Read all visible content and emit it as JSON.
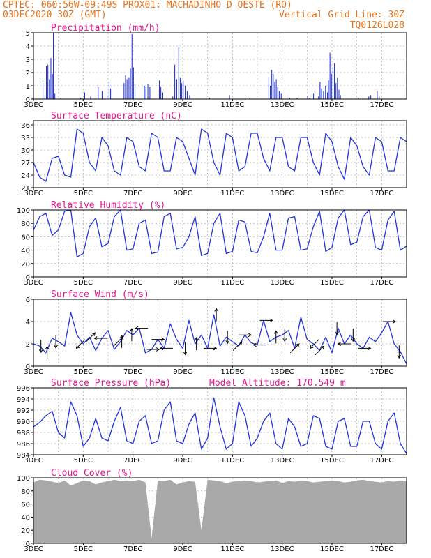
{
  "header": {
    "line1": "CPTEC:   060:56W-09:49S   PROX01: MACHADINHO D OESTE (RO)",
    "line2_left": "03DEC2020 30Z (GMT)",
    "line2_right": "Vertical Grid Line: 30Z",
    "line3_right": "TQ0126L028"
  },
  "colors": {
    "header": "#e8731a",
    "panel_title": "#e0168c",
    "series": "#2233dd",
    "wind_arrow": "#000000",
    "cloud_fill": "#a9a9a9",
    "grid": "#b0b0b0"
  },
  "chart_data": [
    {
      "type": "bar",
      "title": "Precipitation (mm/h)",
      "xticks": [
        "3DEC",
        "5DEC",
        "7DEC",
        "9DEC",
        "11DEC",
        "13DEC",
        "15DEC",
        "17DEC"
      ],
      "ylim": [
        0,
        5
      ],
      "yticks": [
        0,
        1,
        2,
        3,
        4,
        5
      ],
      "x_range_days": [
        0,
        15
      ],
      "bars": [
        {
          "x": 0.38,
          "v": 1.2
        },
        {
          "x": 0.46,
          "v": 0.3
        },
        {
          "x": 0.52,
          "v": 2.5
        },
        {
          "x": 0.58,
          "v": 2.6
        },
        {
          "x": 0.64,
          "v": 1.5
        },
        {
          "x": 0.7,
          "v": 3.1
        },
        {
          "x": 0.76,
          "v": 1.9
        },
        {
          "x": 0.8,
          "v": 5.0
        },
        {
          "x": 0.86,
          "v": 0.4
        },
        {
          "x": 1.1,
          "v": 0.1
        },
        {
          "x": 1.9,
          "v": 0.1
        },
        {
          "x": 2.06,
          "v": 0.5
        },
        {
          "x": 2.3,
          "v": 0.2
        },
        {
          "x": 2.6,
          "v": 0.9
        },
        {
          "x": 2.76,
          "v": 0.6
        },
        {
          "x": 2.96,
          "v": 0.3
        },
        {
          "x": 3.04,
          "v": 1.3
        },
        {
          "x": 3.1,
          "v": 0.8
        },
        {
          "x": 3.64,
          "v": 1.2
        },
        {
          "x": 3.7,
          "v": 1.8
        },
        {
          "x": 3.76,
          "v": 1.5
        },
        {
          "x": 3.84,
          "v": 1.6
        },
        {
          "x": 3.9,
          "v": 2.3
        },
        {
          "x": 3.96,
          "v": 4.9
        },
        {
          "x": 4.02,
          "v": 2.4
        },
        {
          "x": 4.08,
          "v": 1.1
        },
        {
          "x": 4.46,
          "v": 1.0
        },
        {
          "x": 4.52,
          "v": 0.9
        },
        {
          "x": 4.6,
          "v": 1.1
        },
        {
          "x": 4.68,
          "v": 0.9
        },
        {
          "x": 5.06,
          "v": 1.4
        },
        {
          "x": 5.12,
          "v": 0.9
        },
        {
          "x": 5.2,
          "v": 0.5
        },
        {
          "x": 5.6,
          "v": 0.2
        },
        {
          "x": 5.68,
          "v": 2.6
        },
        {
          "x": 5.76,
          "v": 1.5
        },
        {
          "x": 5.84,
          "v": 3.9
        },
        {
          "x": 5.9,
          "v": 1.6
        },
        {
          "x": 5.96,
          "v": 1.2
        },
        {
          "x": 6.02,
          "v": 1.4
        },
        {
          "x": 6.1,
          "v": 1.0
        },
        {
          "x": 6.18,
          "v": 0.6
        },
        {
          "x": 6.28,
          "v": 0.3
        },
        {
          "x": 7.08,
          "v": 0.1
        },
        {
          "x": 7.88,
          "v": 0.3
        },
        {
          "x": 8.7,
          "v": 0.1
        },
        {
          "x": 9.46,
          "v": 1.7
        },
        {
          "x": 9.52,
          "v": 1.0
        },
        {
          "x": 9.58,
          "v": 2.2
        },
        {
          "x": 9.64,
          "v": 1.9
        },
        {
          "x": 9.7,
          "v": 1.3
        },
        {
          "x": 9.76,
          "v": 1.5
        },
        {
          "x": 9.82,
          "v": 0.9
        },
        {
          "x": 9.88,
          "v": 0.6
        },
        {
          "x": 9.96,
          "v": 0.4
        },
        {
          "x": 10.3,
          "v": 0.1
        },
        {
          "x": 10.6,
          "v": 0.1
        },
        {
          "x": 11.02,
          "v": 0.2
        },
        {
          "x": 11.1,
          "v": 0.1
        },
        {
          "x": 11.26,
          "v": 0.4
        },
        {
          "x": 11.46,
          "v": 0.2
        },
        {
          "x": 11.52,
          "v": 1.3
        },
        {
          "x": 11.58,
          "v": 0.8
        },
        {
          "x": 11.66,
          "v": 0.6
        },
        {
          "x": 11.74,
          "v": 1.0
        },
        {
          "x": 11.82,
          "v": 0.5
        },
        {
          "x": 11.86,
          "v": 1.4
        },
        {
          "x": 11.92,
          "v": 3.5
        },
        {
          "x": 11.98,
          "v": 1.9
        },
        {
          "x": 12.04,
          "v": 2.4
        },
        {
          "x": 12.1,
          "v": 2.7
        },
        {
          "x": 12.16,
          "v": 1.2
        },
        {
          "x": 12.22,
          "v": 1.6
        },
        {
          "x": 12.28,
          "v": 0.7
        },
        {
          "x": 12.34,
          "v": 0.3
        },
        {
          "x": 13.06,
          "v": 0.1
        },
        {
          "x": 13.48,
          "v": 0.2
        },
        {
          "x": 13.56,
          "v": 0.3
        },
        {
          "x": 13.82,
          "v": 0.6
        },
        {
          "x": 13.9,
          "v": 0.2
        }
      ]
    },
    {
      "type": "line",
      "title": "Surface Temperature (nC)",
      "xticks": [
        "3DEC",
        "5DEC",
        "7DEC",
        "9DEC",
        "11DEC",
        "13DEC",
        "15DEC",
        "17DEC"
      ],
      "ylim": [
        21,
        37
      ],
      "yticks": [
        21,
        24,
        27,
        30,
        33,
        36
      ],
      "x_range_days": [
        0,
        15
      ],
      "x": [
        0,
        0.25,
        0.5,
        0.75,
        1,
        1.25,
        1.5,
        1.75,
        2,
        2.25,
        2.5,
        2.75,
        3,
        3.25,
        3.5,
        3.75,
        4,
        4.25,
        4.5,
        4.75,
        5,
        5.25,
        5.5,
        5.75,
        6,
        6.25,
        6.5,
        6.75,
        7,
        7.25,
        7.5,
        7.75,
        8,
        8.25,
        8.5,
        8.75,
        9,
        9.25,
        9.5,
        9.75,
        10,
        10.25,
        10.5,
        10.75,
        11,
        11.25,
        11.5,
        11.75,
        12,
        12.25,
        12.5,
        12.75,
        13,
        13.25,
        13.5,
        13.75,
        14,
        14.25,
        14.5,
        14.75,
        15
      ],
      "values": [
        27,
        23.5,
        22.5,
        28,
        28.5,
        24,
        23.5,
        35,
        34,
        27,
        25,
        33,
        31,
        25,
        24,
        33,
        32,
        26,
        25,
        34,
        33,
        25,
        25,
        33,
        32,
        28,
        24,
        35,
        34,
        27,
        24,
        34,
        33,
        25,
        26,
        34,
        34,
        28,
        25,
        33,
        33,
        26,
        25,
        33,
        33,
        27,
        24,
        34,
        32,
        26,
        23,
        33,
        31,
        26,
        24,
        33,
        32,
        25,
        25,
        33,
        32
      ]
    },
    {
      "type": "line",
      "title": "Relative Humidity (%)",
      "xticks": [
        "3DEC",
        "5DEC",
        "7DEC",
        "9DEC",
        "11DEC",
        "13DEC",
        "15DEC",
        "17DEC"
      ],
      "ylim": [
        0,
        100
      ],
      "yticks": [
        0,
        20,
        40,
        60,
        80,
        100
      ],
      "x_range_days": [
        0,
        15
      ],
      "x": [
        0,
        0.25,
        0.5,
        0.75,
        1,
        1.25,
        1.5,
        1.75,
        2,
        2.25,
        2.5,
        2.75,
        3,
        3.25,
        3.5,
        3.75,
        4,
        4.25,
        4.5,
        4.75,
        5,
        5.25,
        5.5,
        5.75,
        6,
        6.25,
        6.5,
        6.75,
        7,
        7.25,
        7.5,
        7.75,
        8,
        8.25,
        8.5,
        8.75,
        9,
        9.25,
        9.5,
        9.75,
        10,
        10.25,
        10.5,
        10.75,
        11,
        11.25,
        11.5,
        11.75,
        12,
        12.25,
        12.5,
        12.75,
        13,
        13.25,
        13.5,
        13.75,
        14,
        14.25,
        14.5,
        14.75,
        15
      ],
      "values": [
        70,
        90,
        95,
        62,
        70,
        98,
        100,
        30,
        35,
        75,
        88,
        45,
        50,
        90,
        100,
        40,
        42,
        80,
        85,
        35,
        37,
        90,
        95,
        42,
        44,
        60,
        90,
        32,
        35,
        80,
        95,
        35,
        38,
        85,
        82,
        38,
        36,
        60,
        95,
        40,
        40,
        88,
        90,
        40,
        42,
        75,
        98,
        38,
        44,
        88,
        100,
        48,
        52,
        90,
        100,
        44,
        40,
        85,
        98,
        40,
        46
      ]
    },
    {
      "type": "line",
      "title": "Surface Wind (m/s)",
      "xticks": [
        "3DEC",
        "5DEC",
        "7DEC",
        "9DEC",
        "11DEC",
        "13DEC",
        "15DEC",
        "17DEC"
      ],
      "ylim": [
        0,
        6
      ],
      "yticks": [
        0,
        2,
        4,
        6
      ],
      "x_range_days": [
        0,
        15
      ],
      "x": [
        0,
        0.25,
        0.5,
        0.75,
        1,
        1.25,
        1.5,
        1.75,
        2,
        2.25,
        2.5,
        2.75,
        3,
        3.25,
        3.5,
        3.75,
        4,
        4.25,
        4.5,
        4.75,
        5,
        5.25,
        5.5,
        5.75,
        6,
        6.25,
        6.5,
        6.75,
        7,
        7.25,
        7.5,
        7.75,
        8,
        8.25,
        8.5,
        8.75,
        9,
        9.25,
        9.5,
        9.75,
        10,
        10.25,
        10.5,
        10.75,
        11,
        11.25,
        11.5,
        11.75,
        12,
        12.25,
        12.5,
        12.75,
        13,
        13.25,
        13.5,
        13.75,
        14,
        14.25,
        14.5,
        14.75,
        15
      ],
      "values": [
        2,
        1.8,
        1.2,
        2.5,
        2.2,
        1.8,
        4.8,
        2.8,
        2,
        2.6,
        1.4,
        2.5,
        3.2,
        1.5,
        2.2,
        3.2,
        2.8,
        3.4,
        1.2,
        1.5,
        2.4,
        1.6,
        3.8,
        2.4,
        1.6,
        4.1,
        2,
        2.8,
        1.6,
        4.6,
        1.8,
        2.6,
        2.2,
        1.8,
        2.8,
        2.1,
        1.9,
        4.1,
        2.2,
        2.6,
        2.8,
        3.2,
        1.6,
        4.4,
        2.4,
        2,
        1.4,
        2.6,
        1.2,
        3.4,
        2,
        2.8,
        2,
        1.6,
        2.6,
        2.2,
        3,
        4,
        2,
        1.3,
        0.2
      ],
      "arrows": [
        {
          "x": 0.3,
          "dir": "S"
        },
        {
          "x": 0.55,
          "dir": "N"
        },
        {
          "x": 0.9,
          "dir": "S"
        },
        {
          "x": 1.9,
          "dir": "SW"
        },
        {
          "x": 2.3,
          "dir": "NE"
        },
        {
          "x": 2.7,
          "dir": "W"
        },
        {
          "x": 3.4,
          "dir": "NE"
        },
        {
          "x": 3.55,
          "dir": "N"
        },
        {
          "x": 3.95,
          "dir": "N"
        },
        {
          "x": 4.35,
          "dir": "W"
        },
        {
          "x": 4.8,
          "dir": "E"
        },
        {
          "x": 5.0,
          "dir": "E"
        },
        {
          "x": 5.35,
          "dir": "W"
        },
        {
          "x": 6.1,
          "dir": "S"
        },
        {
          "x": 6.55,
          "dir": "N"
        },
        {
          "x": 7.1,
          "dir": "E"
        },
        {
          "x": 7.35,
          "dir": "N"
        },
        {
          "x": 7.8,
          "dir": "S"
        },
        {
          "x": 8.2,
          "dir": "NE"
        },
        {
          "x": 8.5,
          "dir": "E"
        },
        {
          "x": 9.1,
          "dir": "W"
        },
        {
          "x": 9.35,
          "dir": "E"
        },
        {
          "x": 9.75,
          "dir": "N"
        },
        {
          "x": 10.1,
          "dir": "S"
        },
        {
          "x": 10.5,
          "dir": "NE"
        },
        {
          "x": 11.3,
          "dir": "SW"
        },
        {
          "x": 11.5,
          "dir": "NE"
        },
        {
          "x": 12.2,
          "dir": "S"
        },
        {
          "x": 12.5,
          "dir": "W"
        },
        {
          "x": 12.85,
          "dir": "S"
        },
        {
          "x": 13.3,
          "dir": "E"
        },
        {
          "x": 14.3,
          "dir": "E"
        },
        {
          "x": 14.7,
          "dir": "S"
        }
      ]
    },
    {
      "type": "line",
      "title": "Surface Pressure (hPa)",
      "annotation": "Model Altitude: 170.549 m",
      "xticks": [
        "3DEC",
        "5DEC",
        "7DEC",
        "9DEC",
        "11DEC",
        "13DEC",
        "15DEC",
        "17DEC"
      ],
      "ylim": [
        984,
        996
      ],
      "yticks": [
        984,
        986,
        988,
        990,
        992,
        994,
        996
      ],
      "x_range_days": [
        0,
        15
      ],
      "x": [
        0,
        0.25,
        0.5,
        0.75,
        1,
        1.25,
        1.5,
        1.75,
        2,
        2.25,
        2.5,
        2.75,
        3,
        3.25,
        3.5,
        3.75,
        4,
        4.25,
        4.5,
        4.75,
        5,
        5.25,
        5.5,
        5.75,
        6,
        6.25,
        6.5,
        6.75,
        7,
        7.25,
        7.5,
        7.75,
        8,
        8.25,
        8.5,
        8.75,
        9,
        9.25,
        9.5,
        9.75,
        10,
        10.25,
        10.5,
        10.75,
        11,
        11.25,
        11.5,
        11.75,
        12,
        12.25,
        12.5,
        12.75,
        13,
        13.25,
        13.5,
        13.75,
        14,
        14.25,
        14.5,
        14.75,
        15
      ],
      "values": [
        989,
        989.8,
        991,
        991.8,
        988,
        987,
        993.5,
        991,
        985.5,
        987,
        990.5,
        987,
        986.5,
        990,
        992.5,
        986.5,
        986,
        990,
        991,
        986,
        986.5,
        992,
        993.5,
        986.5,
        986,
        989.5,
        991.5,
        985,
        987,
        994.2,
        989,
        985,
        986,
        993.5,
        991,
        985.5,
        987,
        990,
        991.5,
        986,
        985,
        990.5,
        989,
        985.5,
        986,
        991,
        990.5,
        985.5,
        985,
        990,
        990.5,
        985.5,
        985.5,
        990,
        990,
        986,
        985,
        990,
        991.5,
        986,
        984.2
      ]
    },
    {
      "type": "area",
      "title": "Cloud Cover (%)",
      "xticks": [
        "3DEC",
        "5DEC",
        "7DEC",
        "9DEC",
        "11DEC",
        "13DEC",
        "15DEC",
        "17DEC"
      ],
      "ylim": [
        0,
        100
      ],
      "yticks": [
        0,
        20,
        40,
        60,
        80,
        100
      ],
      "x_range_days": [
        0,
        15
      ],
      "x": [
        0,
        0.25,
        0.5,
        0.75,
        1,
        1.25,
        1.5,
        1.75,
        2,
        2.25,
        2.5,
        2.75,
        3,
        3.25,
        3.5,
        3.75,
        4,
        4.25,
        4.5,
        4.75,
        5,
        5.25,
        5.5,
        5.75,
        6,
        6.25,
        6.5,
        6.75,
        7,
        7.25,
        7.5,
        7.75,
        8,
        8.25,
        8.5,
        8.75,
        9,
        9.25,
        9.5,
        9.75,
        10,
        10.25,
        10.5,
        10.75,
        11,
        11.25,
        11.5,
        11.75,
        12,
        12.25,
        12.5,
        12.75,
        13,
        13.25,
        13.5,
        13.75,
        14,
        14.25,
        14.5,
        14.75,
        15
      ],
      "values": [
        93,
        97,
        96,
        94,
        92,
        96,
        88,
        92,
        96,
        95,
        90,
        93,
        95,
        97,
        95,
        96,
        95,
        97,
        93,
        8,
        96,
        95,
        97,
        90,
        93,
        95,
        94,
        20,
        97,
        96,
        95,
        92,
        94,
        95,
        96,
        95,
        93,
        94,
        95,
        96,
        92,
        95,
        94,
        96,
        95,
        93,
        94,
        95,
        96,
        95,
        93,
        94,
        96,
        97,
        95,
        94,
        93,
        95,
        94,
        96,
        95
      ]
    }
  ]
}
